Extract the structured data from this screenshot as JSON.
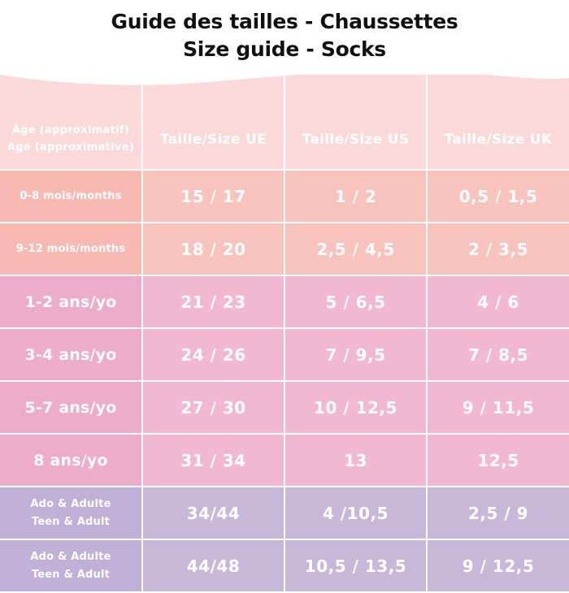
{
  "title": {
    "line1": "Guide des tailles - Chaussettes",
    "line2": "Size guide - Socks"
  },
  "header": {
    "age_fr": "Âge (approximatif)",
    "age_en": "Age (approximative)",
    "eu": "Taille/Size UE",
    "us": "Taille/Size US",
    "uk": "Taille/Size UK"
  },
  "rows": [
    {
      "age": "0-8 mois/months",
      "eu": "15 / 17",
      "us": "1 / 2",
      "uk": "0,5 / 1,5"
    },
    {
      "age": "9-12 mois/months",
      "eu": "18 / 20",
      "us": "2,5 / 4,5",
      "uk": "2 / 3,5"
    },
    {
      "age": "1-2 ans/yo",
      "eu": "21 / 23",
      "us": "5 / 6,5",
      "uk": "4 / 6"
    },
    {
      "age": "3-4 ans/yo",
      "eu": "24 / 26",
      "us": "7 / 9,5",
      "uk": "7 / 8,5"
    },
    {
      "age": "5-7 ans/yo",
      "eu": "27 / 30",
      "us": "10 / 12,5",
      "uk": "9 / 11,5"
    },
    {
      "age": "8 ans/yo",
      "eu": "31 / 34",
      "us": "13",
      "uk": "12,5"
    },
    {
      "age_fr": "Ado & Adulte",
      "age_en": "Teen & Adult",
      "eu": "34/44",
      "us": "4 /10,5",
      "uk": "2,5 / 9"
    },
    {
      "age_fr": "Ado & Adulte",
      "age_en": "Teen & Adult",
      "eu": "44/48",
      "us": "10,5 / 13,5",
      "uk": "9 / 12,5"
    }
  ],
  "colors": {
    "header": "#fbd9d9",
    "peach": "#f9c3bd",
    "pink": "#f3b8d1",
    "lavender": "#c7b8da",
    "text": "#ffffff"
  }
}
